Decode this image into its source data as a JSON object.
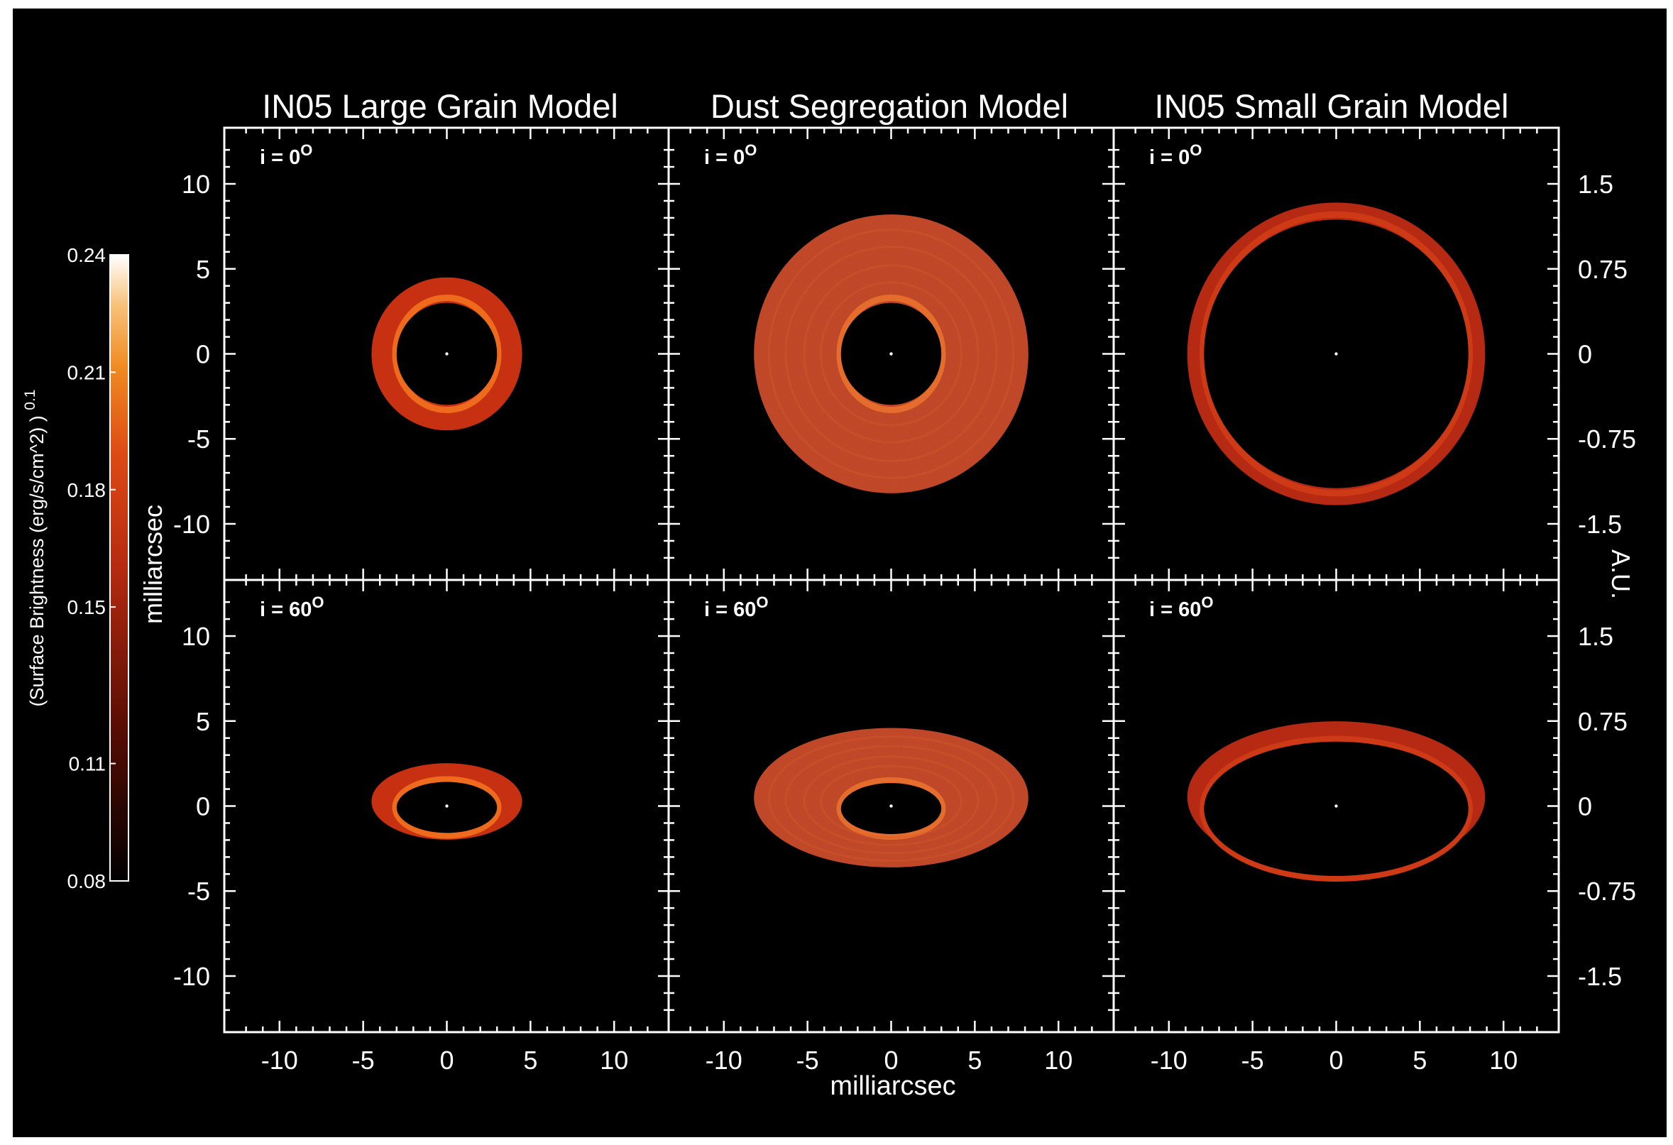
{
  "chart_data": {
    "type": "heatmap",
    "column_titles": [
      "IN05 Large Grain Model",
      "Dust Segregation Model",
      "IN05 Small Grain Model"
    ],
    "rows": [
      {
        "inclination_label": "i = 0",
        "inclination_deg": 0,
        "superscript": "O"
      },
      {
        "inclination_label": "i = 60",
        "inclination_deg": 60,
        "superscript": "O"
      }
    ],
    "xlabel": "milliarcsec",
    "ylabel_left": "milliarcsec",
    "ylabel_right": "A.U.",
    "xlim": [
      -13.3,
      13.3
    ],
    "ylim": [
      -13.3,
      13.3
    ],
    "x_ticks": [
      -10,
      -5,
      0,
      5,
      10
    ],
    "x_tick_labels": [
      "-10",
      "-5",
      "0",
      "5",
      "10"
    ],
    "y_ticks": [
      10,
      5,
      0,
      -5,
      -10
    ],
    "y_tick_labels": [
      "10",
      "5",
      "0",
      "-5",
      "-10"
    ],
    "right_ticks_mas": [
      10,
      5,
      0,
      -5,
      -10
    ],
    "right_tick_labels": [
      "1.5",
      "0.75",
      "0",
      "-0.75",
      "-1.5"
    ],
    "colorbar": {
      "label": "(Surface Brightness (erg/s/cm^2) )",
      "label_superscript": "0.1",
      "range": [
        0.08,
        0.24
      ],
      "ticks": [
        0.24,
        0.21,
        0.18,
        0.15,
        0.11,
        0.08
      ],
      "tick_labels": [
        "0.24",
        "0.21",
        "0.18",
        "0.15",
        "0.11",
        "0.08"
      ]
    },
    "models": [
      {
        "name": "IN05 Large Grain Model",
        "inner_radius_mas": 3.0,
        "outer_radius_mas": 4.5,
        "peak_value": 0.2,
        "fill_color": "#c73112",
        "rim_color": "#ee6a1c"
      },
      {
        "name": "Dust Segregation Model",
        "inner_radius_mas": 3.0,
        "outer_radius_mas": 8.2,
        "peak_value": 0.19,
        "fill_color": "#c03d1a",
        "rim_color": "#e9651e"
      },
      {
        "name": "IN05 Small Grain Model",
        "inner_radius_mas": 7.9,
        "outer_radius_mas": 8.9,
        "peak_value": 0.18,
        "fill_color": "#b62912",
        "rim_color": "#cf3a16"
      }
    ],
    "grid": false,
    "colors": {
      "background": "#000000",
      "axes": "#ffffff",
      "text": "#ffffff"
    }
  }
}
